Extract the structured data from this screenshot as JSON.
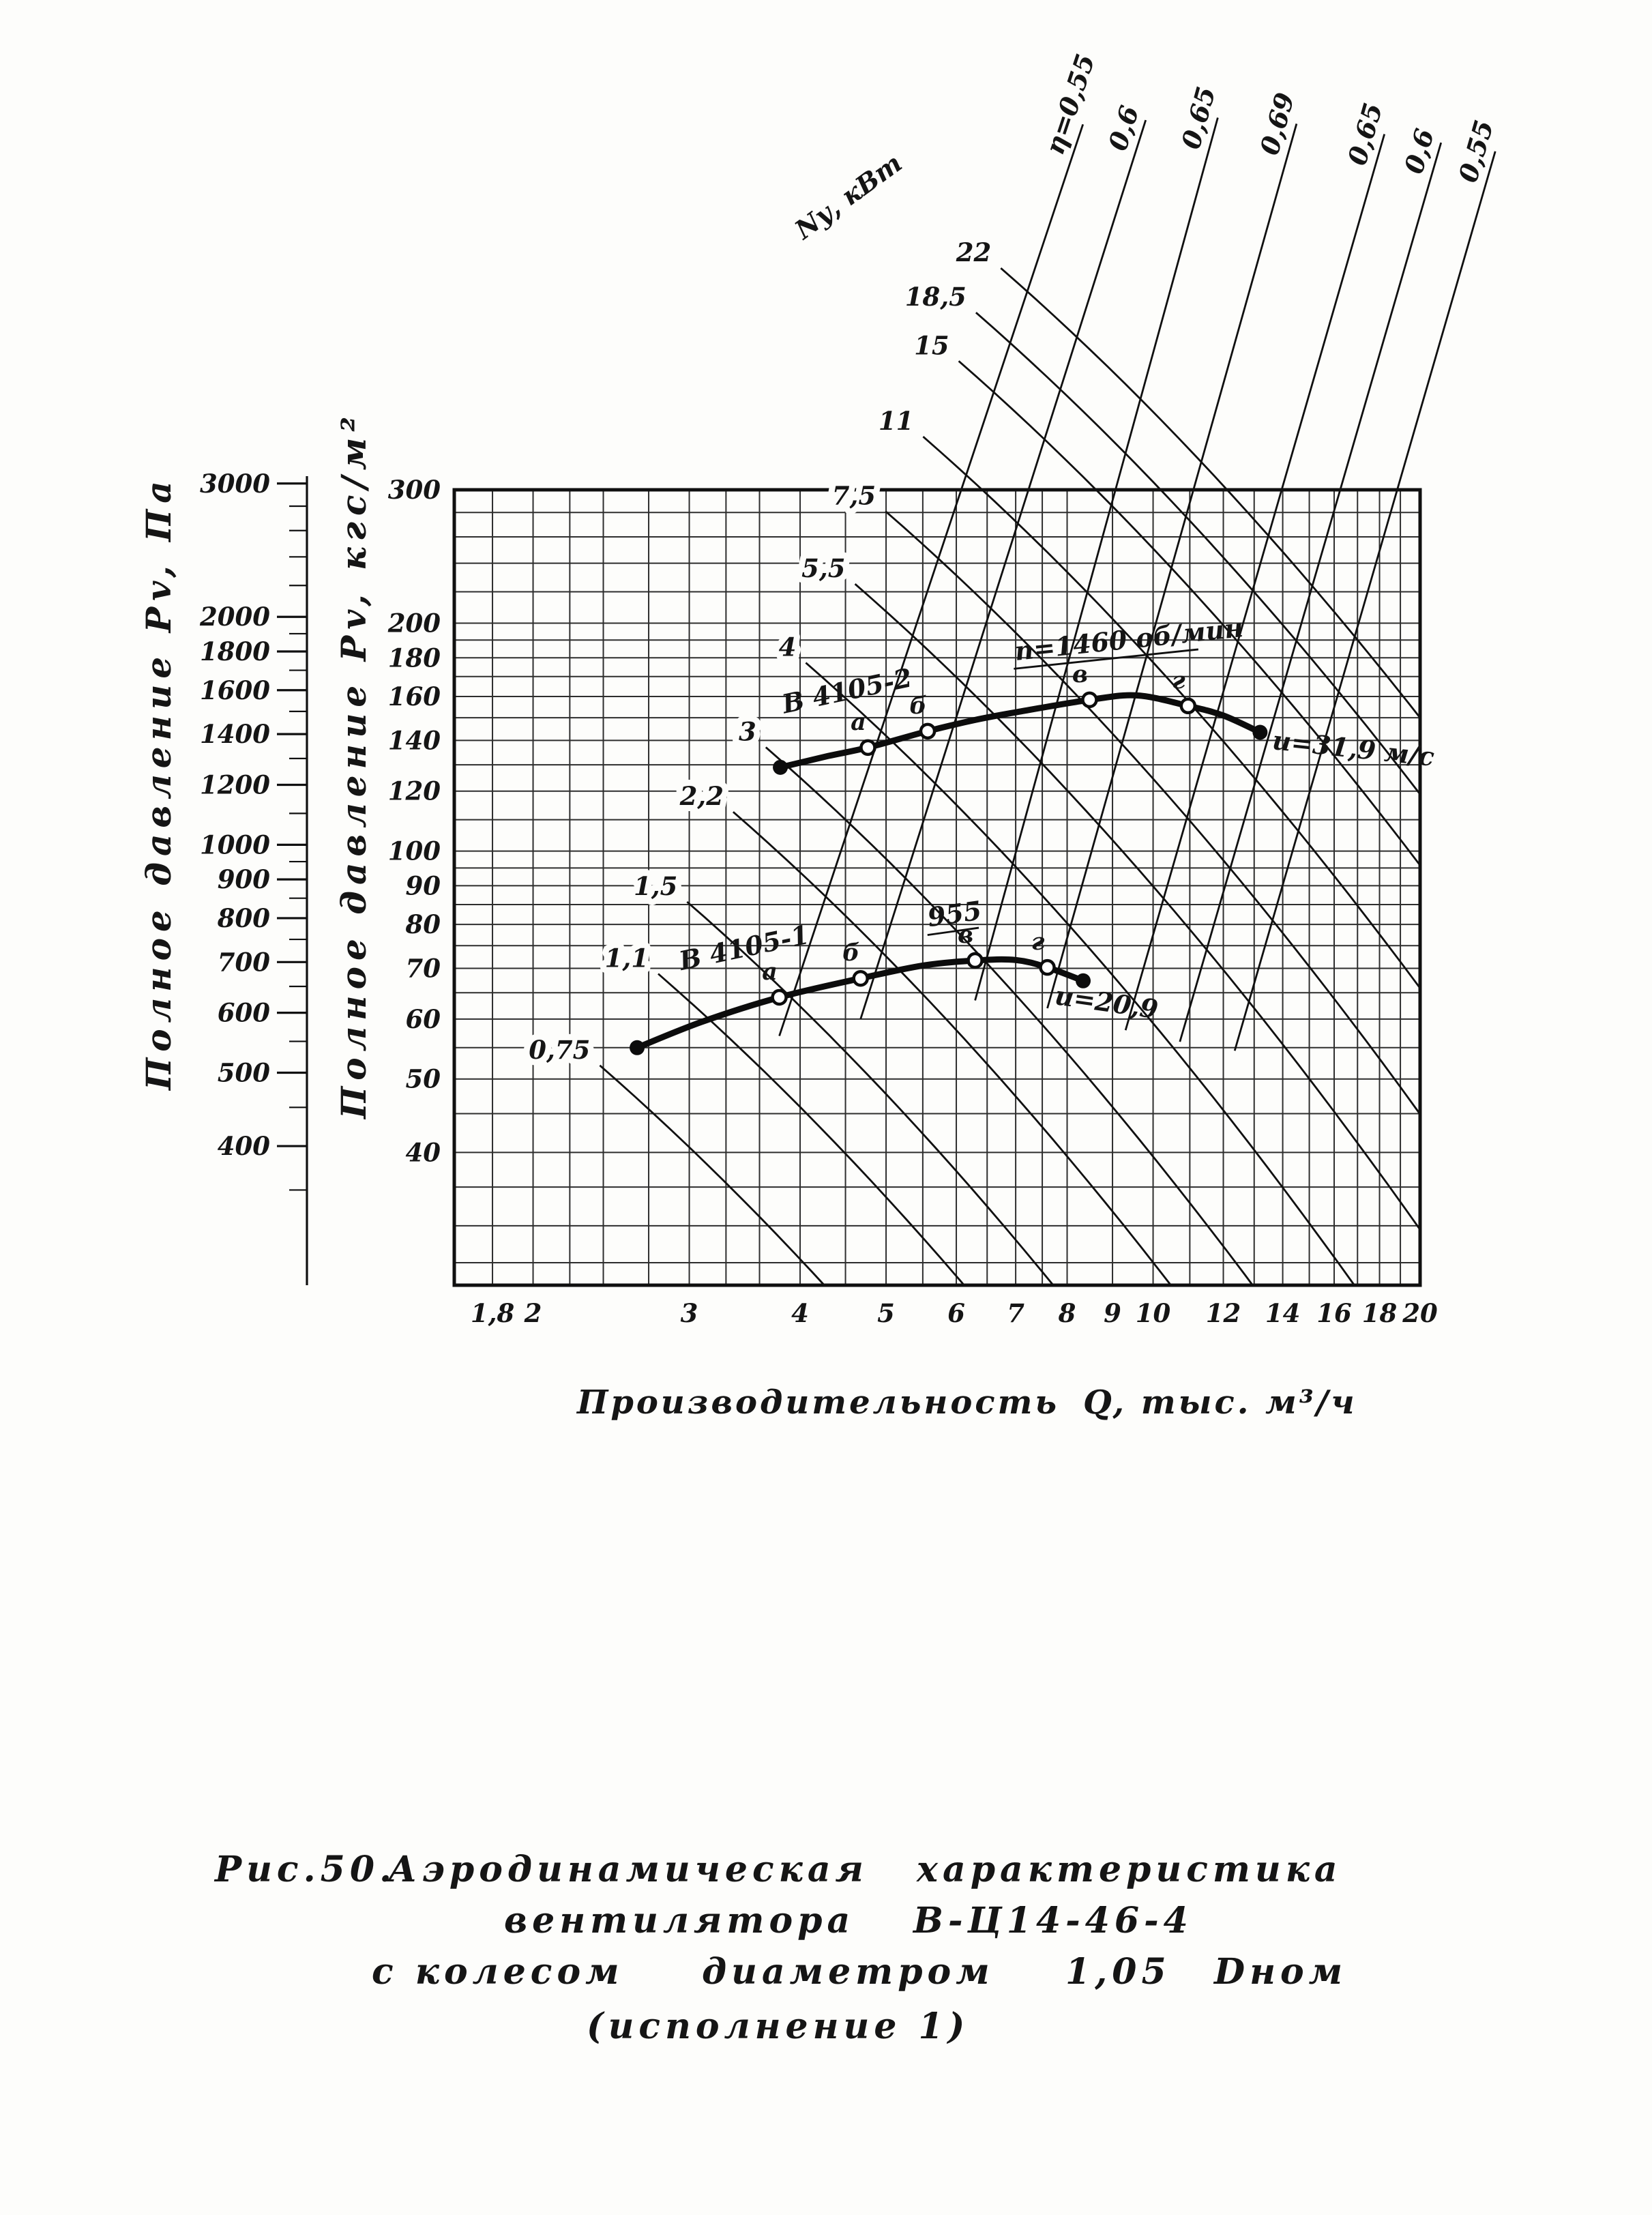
{
  "background": "#fdfdfb",
  "ink": "#151515",
  "chart_data": {
    "type": "line",
    "scale": "log-log",
    "title": "Рис.50. Аэродинамическая характеристика вентилятора В-Ц14-46-4 с колесом диаметром 1,05 Dном (исполнение 1)",
    "x_axis": {
      "title_left": "Производительность",
      "title_right": "Q, тыс. м³/ч",
      "range": [
        1.63,
        20
      ],
      "ticks": [
        {
          "value": 1.8,
          "label": "1,8"
        },
        {
          "value": 2,
          "label": "2"
        },
        {
          "value": 3,
          "label": "3"
        },
        {
          "value": 4,
          "label": "4"
        },
        {
          "value": 5,
          "label": "5"
        },
        {
          "value": 6,
          "label": "6"
        },
        {
          "value": 7,
          "label": "7"
        },
        {
          "value": 8,
          "label": "8"
        },
        {
          "value": 9,
          "label": "9"
        },
        {
          "value": 10,
          "label": "10"
        },
        {
          "value": 12,
          "label": "12"
        },
        {
          "value": 14,
          "label": "14"
        },
        {
          "value": 16,
          "label": "16"
        },
        {
          "value": 18,
          "label": "18"
        },
        {
          "value": 20,
          "label": "20"
        }
      ]
    },
    "y_axis_pa": {
      "label": "Полное давление Pv, Па",
      "ticks": [
        3000,
        2000,
        1800,
        1600,
        1400,
        1200,
        1000,
        900,
        800,
        700,
        600,
        500,
        400
      ],
      "minor_ticks": [
        2800,
        2600,
        2400,
        2200,
        1900,
        1700,
        1500,
        1300,
        1100,
        950,
        850,
        750,
        650,
        550,
        450,
        350
      ]
    },
    "y_axis_kgf": {
      "label": "Полное давление Pv, кгс/м²",
      "ticks": [
        300,
        200,
        180,
        160,
        140,
        120,
        100,
        90,
        80,
        70,
        60,
        50,
        40
      ],
      "range": [
        26.7,
        300
      ]
    },
    "grid": {
      "x_lines": [
        1.8,
        2,
        2.2,
        2.4,
        2.7,
        3,
        3.3,
        3.6,
        4,
        4.5,
        5,
        5.5,
        6,
        6.5,
        7,
        7.5,
        8,
        9,
        10,
        11,
        12,
        13,
        14,
        15,
        16,
        17,
        18,
        19,
        20
      ],
      "y_lines": [
        28.6,
        32,
        36,
        40,
        45,
        50,
        55,
        60,
        65,
        70,
        75,
        80,
        85,
        90,
        95,
        100,
        110,
        120,
        130,
        140,
        150,
        160,
        170,
        180,
        190,
        200,
        220,
        240,
        260,
        280,
        300
      ]
    },
    "power_label": "Nу, кВт",
    "power_lines": [
      {
        "label": "22",
        "Q": 6.57,
        "P": 601
      },
      {
        "label": "18,5",
        "Q": 6.16,
        "P": 525
      },
      {
        "label": "15",
        "Q": 5.89,
        "P": 453
      },
      {
        "label": "11",
        "Q": 5.37,
        "P": 360
      },
      {
        "label": "7,5",
        "Q": 4.87,
        "P": 287
      },
      {
        "label": "5,5",
        "Q": 4.5,
        "P": 230
      },
      {
        "label": "4",
        "Q": 3.96,
        "P": 181
      },
      {
        "label": "3",
        "Q": 3.57,
        "P": 140
      },
      {
        "label": "2,2",
        "Q": 3.28,
        "P": 115
      },
      {
        "label": "1,5",
        "Q": 2.91,
        "P": 87.5
      },
      {
        "label": "1,1",
        "Q": 2.7,
        "P": 70.3
      },
      {
        "label": "0,75",
        "Q": 2.32,
        "P": 53.2
      }
    ],
    "efficiency_lines": [
      {
        "label": "η=0,55",
        "bottom": [
          3.79,
          57
        ],
        "top": [
          8.06,
          810
        ]
      },
      {
        "label": "0,6",
        "bottom": [
          4.68,
          60
        ],
        "top": [
          9.5,
          820
        ]
      },
      {
        "label": "0,65",
        "bottom": [
          6.3,
          63.5
        ],
        "top": [
          11.5,
          825
        ]
      },
      {
        "label": "0,69",
        "bottom": [
          7.6,
          62
        ],
        "top": [
          14.1,
          810
        ]
      },
      {
        "label": "0,65",
        "bottom": [
          9.31,
          58
        ],
        "top": [
          17.7,
          785
        ]
      },
      {
        "label": "0,6",
        "bottom": [
          10.72,
          56
        ],
        "top": [
          20.5,
          765
        ]
      },
      {
        "label": "0,55",
        "bottom": [
          12.36,
          54.5
        ],
        "top": [
          23.6,
          745
        ]
      }
    ],
    "curves": [
      {
        "name": "В 4105-2",
        "rpm": "n=1460 об/мин",
        "speed": "u=31,9 м/с",
        "points": [
          [
            3.8,
            129
          ],
          [
            4.3,
            133.5
          ],
          [
            4.77,
            137
          ],
          [
            5.57,
            144
          ],
          [
            6.3,
            149
          ],
          [
            7.0,
            152.5
          ],
          [
            8.48,
            158.4
          ],
          [
            9.6,
            160.5
          ],
          [
            10.95,
            155.5
          ],
          [
            12.0,
            151
          ],
          [
            13.2,
            143.5
          ]
        ],
        "marks": [
          {
            "letter": "а",
            "Q": 4.77,
            "P": 137
          },
          {
            "letter": "б",
            "Q": 5.57,
            "P": 144
          },
          {
            "letter": "в",
            "Q": 8.48,
            "P": 158.4
          },
          {
            "letter": "г",
            "Q": 10.95,
            "P": 155.5
          }
        ],
        "name_pos": [
          3.84,
          152
        ],
        "name_rot": -12,
        "rpm_pos": [
          7.0,
          178.6
        ],
        "rpm_rot": -6,
        "rpm_len": 268,
        "speed_pos": [
          13.6,
          136.4
        ],
        "speed_rot": 6
      },
      {
        "name": "В 4105-1",
        "rpm": "955",
        "speed": "u=20,9",
        "points": [
          [
            2.62,
            55
          ],
          [
            3.1,
            59.5
          ],
          [
            3.79,
            64.1
          ],
          [
            4.68,
            67.9
          ],
          [
            5.5,
            70.6
          ],
          [
            6.3,
            71.7
          ],
          [
            7.0,
            71.8
          ],
          [
            7.6,
            70.2
          ],
          [
            8.34,
            67.4
          ]
        ],
        "marks": [
          {
            "letter": "а",
            "Q": 3.79,
            "P": 64.1
          },
          {
            "letter": "б",
            "Q": 4.68,
            "P": 67.9
          },
          {
            "letter": "в",
            "Q": 6.3,
            "P": 71.7
          },
          {
            "letter": "г",
            "Q": 7.6,
            "P": 70.2
          }
        ],
        "name_pos": [
          2.94,
          69.6
        ],
        "name_rot": -12,
        "rpm_pos": [
          5.59,
          79.5
        ],
        "rpm_rot": -8,
        "rpm_len": 72,
        "speed_pos": [
          7.73,
          62.8
        ],
        "speed_rot": 8
      }
    ],
    "caption_lines": [
      [
        "Рис.50.",
        "Аэродинамическая",
        "характеристика"
      ],
      [
        "вентилятора",
        "В-Ц14-46-4"
      ],
      [
        "с колесом",
        "диаметром",
        "1,05",
        "Dном"
      ],
      [
        "(исполнение 1)"
      ]
    ]
  }
}
